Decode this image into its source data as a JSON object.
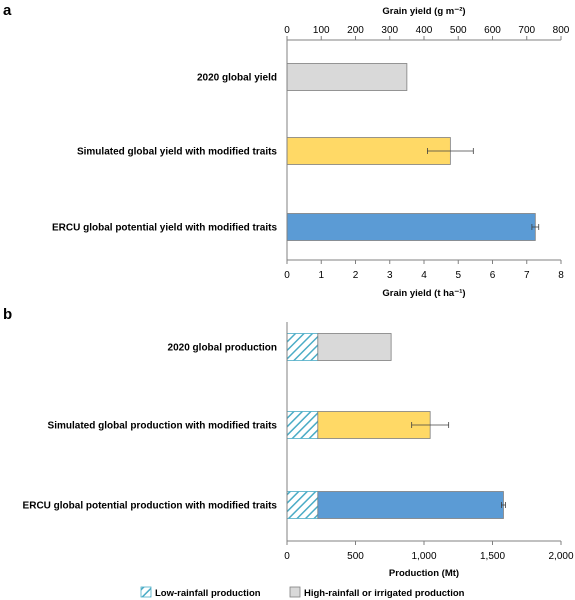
{
  "chart_data": [
    {
      "type": "bar",
      "orientation": "horizontal",
      "panel_label": "a",
      "categories": [
        "2020 global yield",
        "Simulated global yield with modified traits",
        "ERCU global potential yield with modified traits"
      ],
      "values": [
        3.5,
        4.77,
        7.25
      ],
      "error": [
        null,
        0.67,
        0.1
      ],
      "colors": [
        "#d9d9d9",
        "#ffd966",
        "#5b9bd5"
      ],
      "xlabel_bottom": "Grain yield (t ha⁻¹)",
      "xlabel_top": "Grain yield (g m⁻²)",
      "xlim": [
        0,
        8
      ],
      "xticks": [
        "0",
        "1",
        "2",
        "3",
        "4",
        "5",
        "6",
        "7",
        "8"
      ],
      "xlim_top": [
        0,
        800
      ],
      "xticks_top": [
        "0",
        "100",
        "200",
        "300",
        "400",
        "500",
        "600",
        "700",
        "800"
      ],
      "grid": false
    },
    {
      "type": "bar",
      "orientation": "horizontal",
      "stacked": true,
      "panel_label": "b",
      "categories": [
        "2020 global production",
        "Simulated global production with modified traits",
        "ERCU global potential production with modified traits"
      ],
      "series": [
        {
          "name": "Low-rainfall production",
          "values": [
            225,
            225,
            225
          ],
          "pattern": "hatched",
          "color": "#4bacc6"
        },
        {
          "name": "High-rainfall or irrigated production",
          "values": [
            535,
            820,
            1355
          ],
          "colors": [
            "#d9d9d9",
            "#ffd966",
            "#5b9bd5"
          ]
        }
      ],
      "error": [
        null,
        135,
        15
      ],
      "xlabel": "Production (Mt)",
      "xlim": [
        0,
        2000
      ],
      "xticks": [
        "0",
        "500",
        "1,000",
        "1,500",
        "2,000"
      ],
      "legend_position": "bottom",
      "grid": false
    }
  ]
}
